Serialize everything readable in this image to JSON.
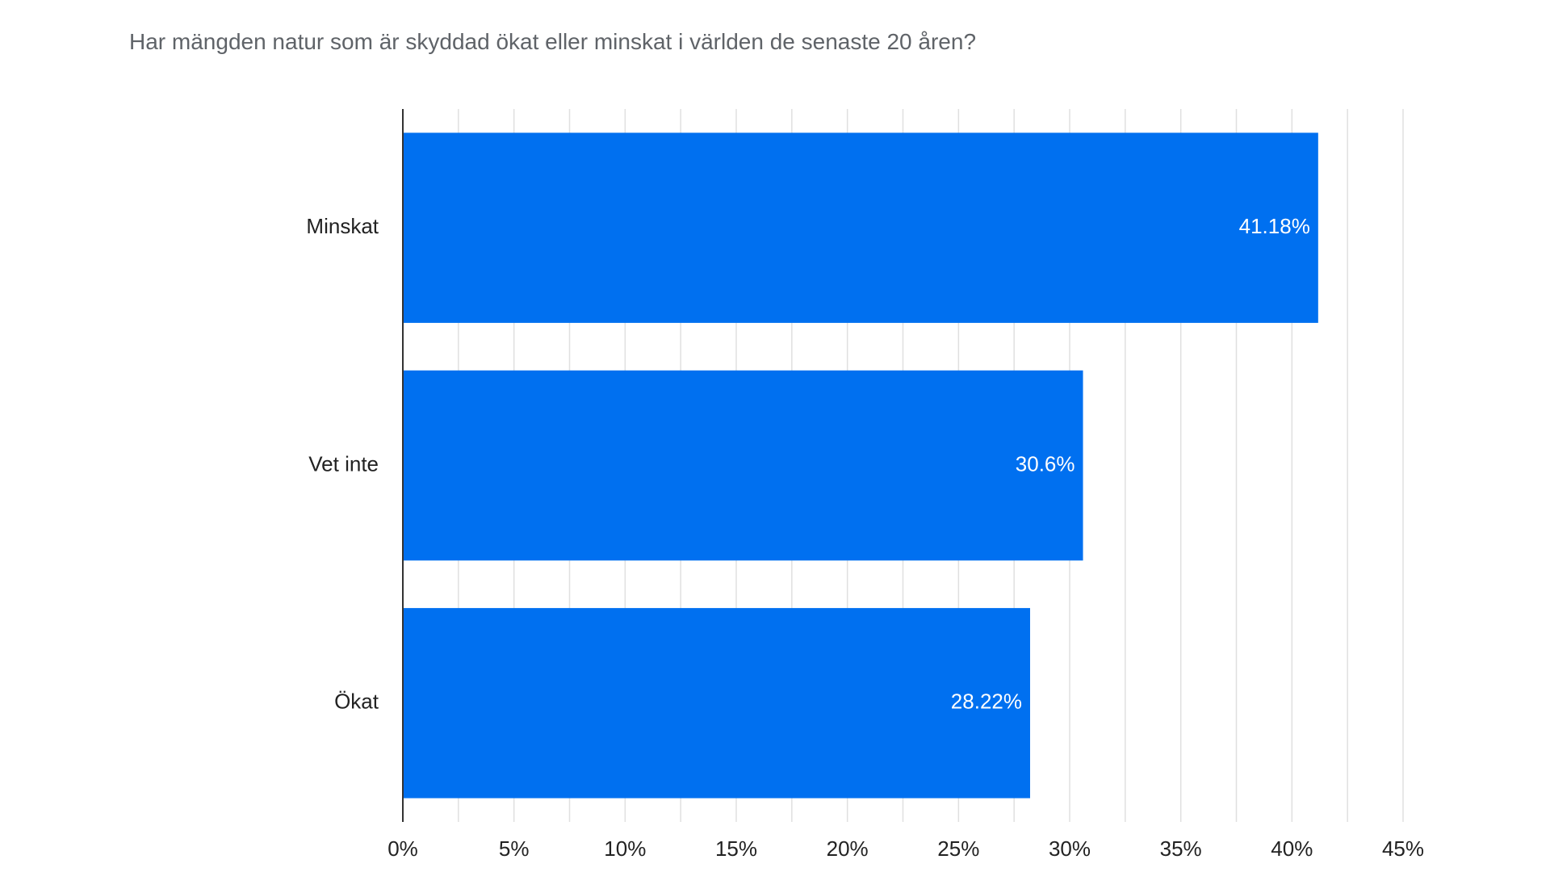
{
  "chart_data": {
    "type": "bar",
    "orientation": "horizontal",
    "title": "Har mängden natur som är skyddad ökat eller minskat i världen de senaste 20 åren?",
    "categories": [
      "Minskat",
      "Vet inte",
      "Ökat"
    ],
    "values": [
      41.18,
      30.6,
      28.22
    ],
    "data_labels": [
      "41.18%",
      "30.6%",
      "28.22%"
    ],
    "xlabel": "",
    "ylabel": "",
    "xlim": [
      0,
      45
    ],
    "x_ticks": [
      0,
      5,
      10,
      15,
      20,
      25,
      30,
      35,
      40,
      45
    ],
    "x_tick_labels": [
      "0%",
      "5%",
      "10%",
      "15%",
      "20%",
      "25%",
      "30%",
      "35%",
      "40%",
      "45%"
    ],
    "grid": true,
    "legend": "none",
    "colors": {
      "bar": "#0070f0",
      "grid": "#e0e0e0",
      "axis": "#333333",
      "label_text": "#222222",
      "data_label_text": "#ffffff",
      "title_text": "#5f6368"
    }
  }
}
